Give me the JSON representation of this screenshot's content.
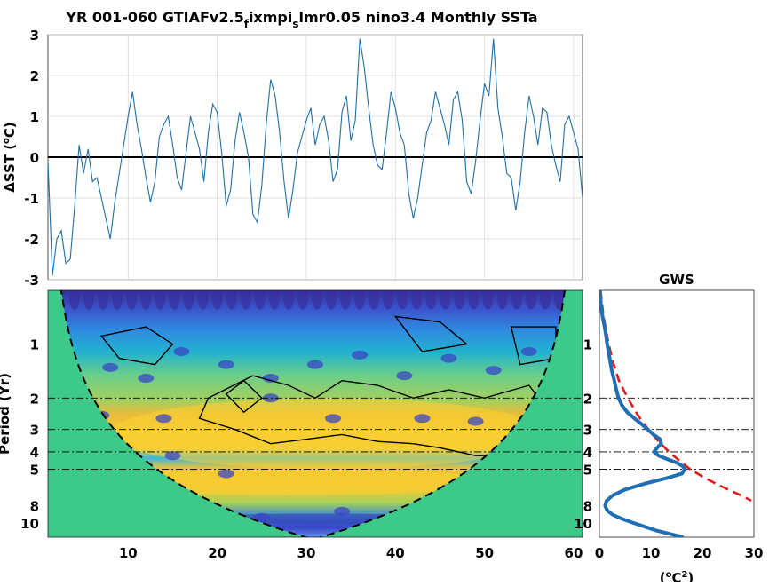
{
  "title": {
    "pre": "YR 001-060 GTIAFv2.5",
    "sub1": "f",
    "mid": "ixmpi",
    "sub2": "s",
    "post": "lmr0.05 nino3.4 Monthly SSTa"
  },
  "colors": {
    "series": "#1f6fa8",
    "gws_line": "#1f6fb4",
    "significance": "#e31a1c",
    "coi_fill": "#3cc98a",
    "axis": "#222222",
    "grid": "#d9d9d9"
  },
  "chart_data": [
    {
      "id": "timeseries",
      "type": "line",
      "ylabel": "ΔSST (°C)",
      "ylabel_parts": {
        "pre": "ΔSST (",
        "sup": "o",
        "post": "C)"
      },
      "xlim": [
        1,
        61
      ],
      "ylim": [
        -3,
        3
      ],
      "yticks": [
        "3",
        "2",
        "1",
        "0",
        "-1",
        "-2",
        "-3"
      ],
      "zero_line": true,
      "grid": true,
      "series": [
        {
          "x": [
            1,
            1.5,
            2,
            2.5,
            3,
            3.5,
            4,
            4.5,
            5,
            5.5,
            6,
            6.5,
            7,
            7.5,
            8,
            8.5,
            9,
            9.5,
            10,
            10.5,
            11,
            11.5,
            12,
            12.5,
            13,
            13.5,
            14,
            14.5,
            15,
            15.5,
            16,
            16.5,
            17,
            17.5,
            18,
            18.5,
            19,
            19.5,
            20,
            20.5,
            21,
            21.5,
            22,
            22.5,
            23,
            23.5,
            24,
            24.5,
            25,
            25.5,
            26,
            26.5,
            27,
            27.5,
            28,
            28.5,
            29,
            29.5,
            30,
            30.5,
            31,
            31.5,
            32,
            32.5,
            33,
            33.5,
            34,
            34.5,
            35,
            35.5,
            36,
            36.5,
            37,
            37.5,
            38,
            38.5,
            39,
            39.5,
            40,
            40.5,
            41,
            41.5,
            42,
            42.5,
            43,
            43.5,
            44,
            44.5,
            45,
            45.5,
            46,
            46.5,
            47,
            47.5,
            48,
            48.5,
            49,
            49.5,
            50,
            50.5,
            51,
            51.5,
            52,
            52.5,
            53,
            53.5,
            54,
            54.5,
            55,
            55.5,
            56,
            56.5,
            57,
            57.5,
            58,
            58.5,
            59,
            59.5,
            60,
            60.5,
            61
          ],
          "y": [
            -0.1,
            -2.9,
            -2.0,
            -1.8,
            -2.6,
            -2.5,
            -1.2,
            0.3,
            -0.4,
            0.2,
            -0.6,
            -0.5,
            -1.0,
            -1.5,
            -2.0,
            -1.1,
            -0.4,
            0.3,
            1.0,
            1.6,
            0.8,
            0.2,
            -0.5,
            -1.1,
            -0.6,
            0.5,
            0.8,
            1.0,
            0.3,
            -0.5,
            -0.8,
            0.1,
            1.0,
            0.6,
            0.2,
            -0.6,
            0.6,
            1.3,
            1.1,
            0.1,
            -1.2,
            -0.8,
            0.4,
            1.1,
            0.6,
            0.0,
            -1.4,
            -1.6,
            -0.7,
            0.8,
            1.9,
            1.5,
            0.6,
            -0.6,
            -1.5,
            -0.8,
            0.1,
            0.5,
            0.9,
            1.2,
            0.3,
            0.8,
            1.0,
            0.4,
            -0.6,
            -0.3,
            1.1,
            1.5,
            0.4,
            0.9,
            2.9,
            2.2,
            1.2,
            0.3,
            -0.2,
            -0.3,
            0.6,
            1.6,
            1.2,
            0.6,
            0.3,
            -0.9,
            -1.5,
            -1.0,
            -0.2,
            0.6,
            0.9,
            1.6,
            1.2,
            0.8,
            0.3,
            1.4,
            1.6,
            0.9,
            -0.6,
            -0.9,
            -0.1,
            0.9,
            1.8,
            1.5,
            2.9,
            1.2,
            0.5,
            -0.4,
            -0.5,
            -1.3,
            -0.6,
            0.6,
            1.5,
            1.0,
            0.3,
            1.2,
            1.1,
            0.3,
            -0.2,
            -0.6,
            0.8,
            1.0,
            0.6,
            0.2,
            -1.0
          ]
        }
      ]
    },
    {
      "id": "wavelet",
      "type": "heatmap",
      "ylabel": "Period (Yr)",
      "ylabel_vis": "Period (Yr)",
      "xlim": [
        1,
        61
      ],
      "ylim": [
        0.5,
        12
      ],
      "yscale": "log",
      "xticks": [
        "10",
        "20",
        "30",
        "40",
        "50",
        "60"
      ],
      "yticks": [
        "1",
        "2",
        "3",
        "4",
        "5",
        "8",
        "10"
      ],
      "reference_periods": [
        2,
        3,
        4,
        5
      ],
      "high_power_bands": [
        {
          "period_range": [
            2,
            5
          ],
          "x_range": [
            8,
            57
          ],
          "level": "high"
        },
        {
          "period_range": [
            5,
            7
          ],
          "x_range": [
            4,
            52
          ],
          "level": "high"
        },
        {
          "period_range": [
            9,
            10
          ],
          "x_range": [
            17,
            46
          ],
          "level": "low"
        }
      ]
    },
    {
      "id": "gws",
      "type": "line",
      "title": "GWS",
      "xlabel": "(°C²)",
      "xlabel_parts": {
        "pre": "(",
        "sup1": "o",
        "mid": "C",
        "sup2": "2",
        "post": ")"
      },
      "xlim": [
        0,
        30
      ],
      "ylim": [
        0.5,
        12
      ],
      "yscale": "log",
      "xticks": [
        "0",
        "10",
        "20",
        "30"
      ],
      "yticks": [
        "1",
        "2",
        "3",
        "4",
        "5",
        "8",
        "10"
      ],
      "reference_periods": [
        2,
        3,
        4,
        5
      ],
      "series": [
        {
          "name": "",
          "style": "solid",
          "period": [
            0.5,
            0.6,
            0.7,
            0.8,
            0.9,
            1.0,
            1.2,
            1.4,
            1.6,
            1.8,
            2.0,
            2.2,
            2.4,
            2.6,
            2.8,
            3.0,
            3.2,
            3.4,
            3.6,
            3.8,
            4.0,
            4.2,
            4.4,
            4.6,
            4.8,
            5.0,
            5.3,
            5.6,
            6.0,
            6.5,
            7.0,
            7.5,
            8.0,
            8.5,
            9.0,
            9.5,
            10.0,
            11.0,
            12.0
          ],
          "power": [
            0.1,
            0.3,
            0.6,
            1.0,
            1.3,
            1.5,
            2.0,
            2.4,
            2.9,
            3.3,
            3.7,
            4.4,
            5.4,
            6.8,
            8.2,
            9.4,
            10.5,
            11.8,
            12.0,
            11.2,
            10.6,
            11.5,
            13.2,
            15.0,
            16.1,
            16.6,
            16.0,
            13.2,
            9.0,
            5.0,
            2.6,
            1.4,
            1.1,
            1.5,
            2.6,
            4.5,
            6.7,
            11.0,
            16.3
          ]
        },
        {
          "name": "",
          "style": "dashed",
          "period": [
            0.5,
            0.7,
            1.0,
            1.3,
            1.6,
            2.0,
            2.5,
            3.0,
            3.5,
            4.0,
            4.5,
            5.0,
            5.5,
            6.0,
            6.5,
            7.0,
            7.5
          ],
          "power": [
            0.2,
            0.8,
            1.8,
            2.8,
            3.8,
            5.5,
            7.5,
            9.5,
            11.5,
            13.5,
            15.6,
            17.6,
            20.0,
            22.5,
            25.0,
            27.5,
            29.5
          ]
        }
      ]
    }
  ]
}
